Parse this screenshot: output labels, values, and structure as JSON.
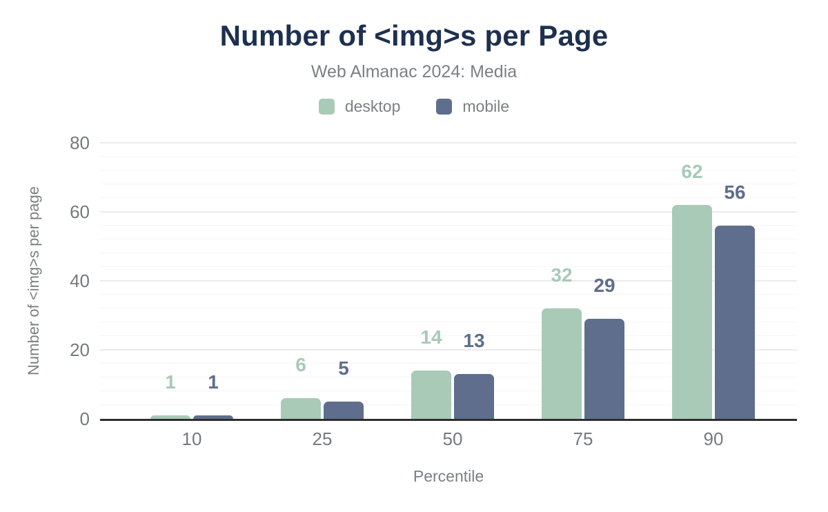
{
  "chart_data": {
    "type": "bar",
    "title": "Number of <img>s per Page",
    "subtitle": "Web Almanac 2024: Media",
    "xlabel": "Percentile",
    "ylabel": "Number of <img>s per page",
    "categories": [
      "10",
      "25",
      "50",
      "75",
      "90"
    ],
    "series": [
      {
        "name": "desktop",
        "color": "#a8cab7",
        "values": [
          1,
          6,
          14,
          32,
          62
        ]
      },
      {
        "name": "mobile",
        "color": "#5e6e8c",
        "values": [
          1,
          5,
          13,
          29,
          56
        ]
      }
    ],
    "ylim": [
      0,
      80
    ],
    "yticks": [
      0,
      20,
      40,
      60,
      80
    ],
    "grid": {
      "major_step": 20,
      "minor_step": 4,
      "visible": true
    },
    "legend_position": "top",
    "data_labels_visible": true
  },
  "style": {
    "title_color": "#1e3050",
    "muted_text_color": "#7b7f84",
    "tick_text_color": "#76797e",
    "axis_line_color": "#2e2e2e",
    "grid_minor_color": "#f6f6f6",
    "grid_major_color": "#ebebeb",
    "background": "#ffffff"
  }
}
